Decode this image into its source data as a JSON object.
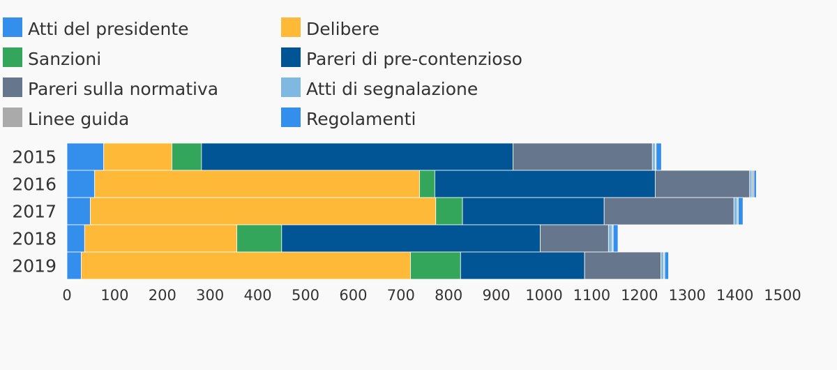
{
  "chart_data": {
    "type": "bar",
    "orientation": "horizontal",
    "stacked": true,
    "categories": [
      "2015",
      "2016",
      "2017",
      "2018",
      "2019"
    ],
    "series": [
      {
        "name": "Atti del presidente",
        "color": "#348eeb",
        "values": [
          77,
          58,
          49,
          37,
          30
        ]
      },
      {
        "name": "Delibere",
        "color": "#ffb938",
        "values": [
          143,
          681,
          724,
          319,
          690
        ]
      },
      {
        "name": "Sanzioni",
        "color": "#33a65b",
        "values": [
          62,
          32,
          56,
          94,
          105
        ]
      },
      {
        "name": "Pareri di pre-contenzioso",
        "color": "#025594",
        "values": [
          653,
          462,
          297,
          542,
          260
        ]
      },
      {
        "name": "Pareri sulla normativa",
        "color": "#66768c",
        "values": [
          292,
          198,
          272,
          143,
          160
        ]
      },
      {
        "name": "Atti di segnalazione",
        "color": "#7fb8e1",
        "values": [
          6,
          5,
          7,
          8,
          6
        ]
      },
      {
        "name": "Linee guida",
        "color": "#aaaaaa",
        "values": [
          2,
          4,
          2,
          2,
          2
        ]
      },
      {
        "name": "Regolamenti",
        "color": "#348eeb",
        "values": [
          11,
          5,
          10,
          10,
          8
        ]
      }
    ],
    "xlim": [
      0,
      1500
    ],
    "xticks": [
      0,
      100,
      200,
      300,
      400,
      500,
      600,
      700,
      800,
      900,
      1000,
      1100,
      1200,
      1300,
      1400,
      1500
    ],
    "grid": false,
    "legend_position": "top",
    "legend_columns": 2
  }
}
